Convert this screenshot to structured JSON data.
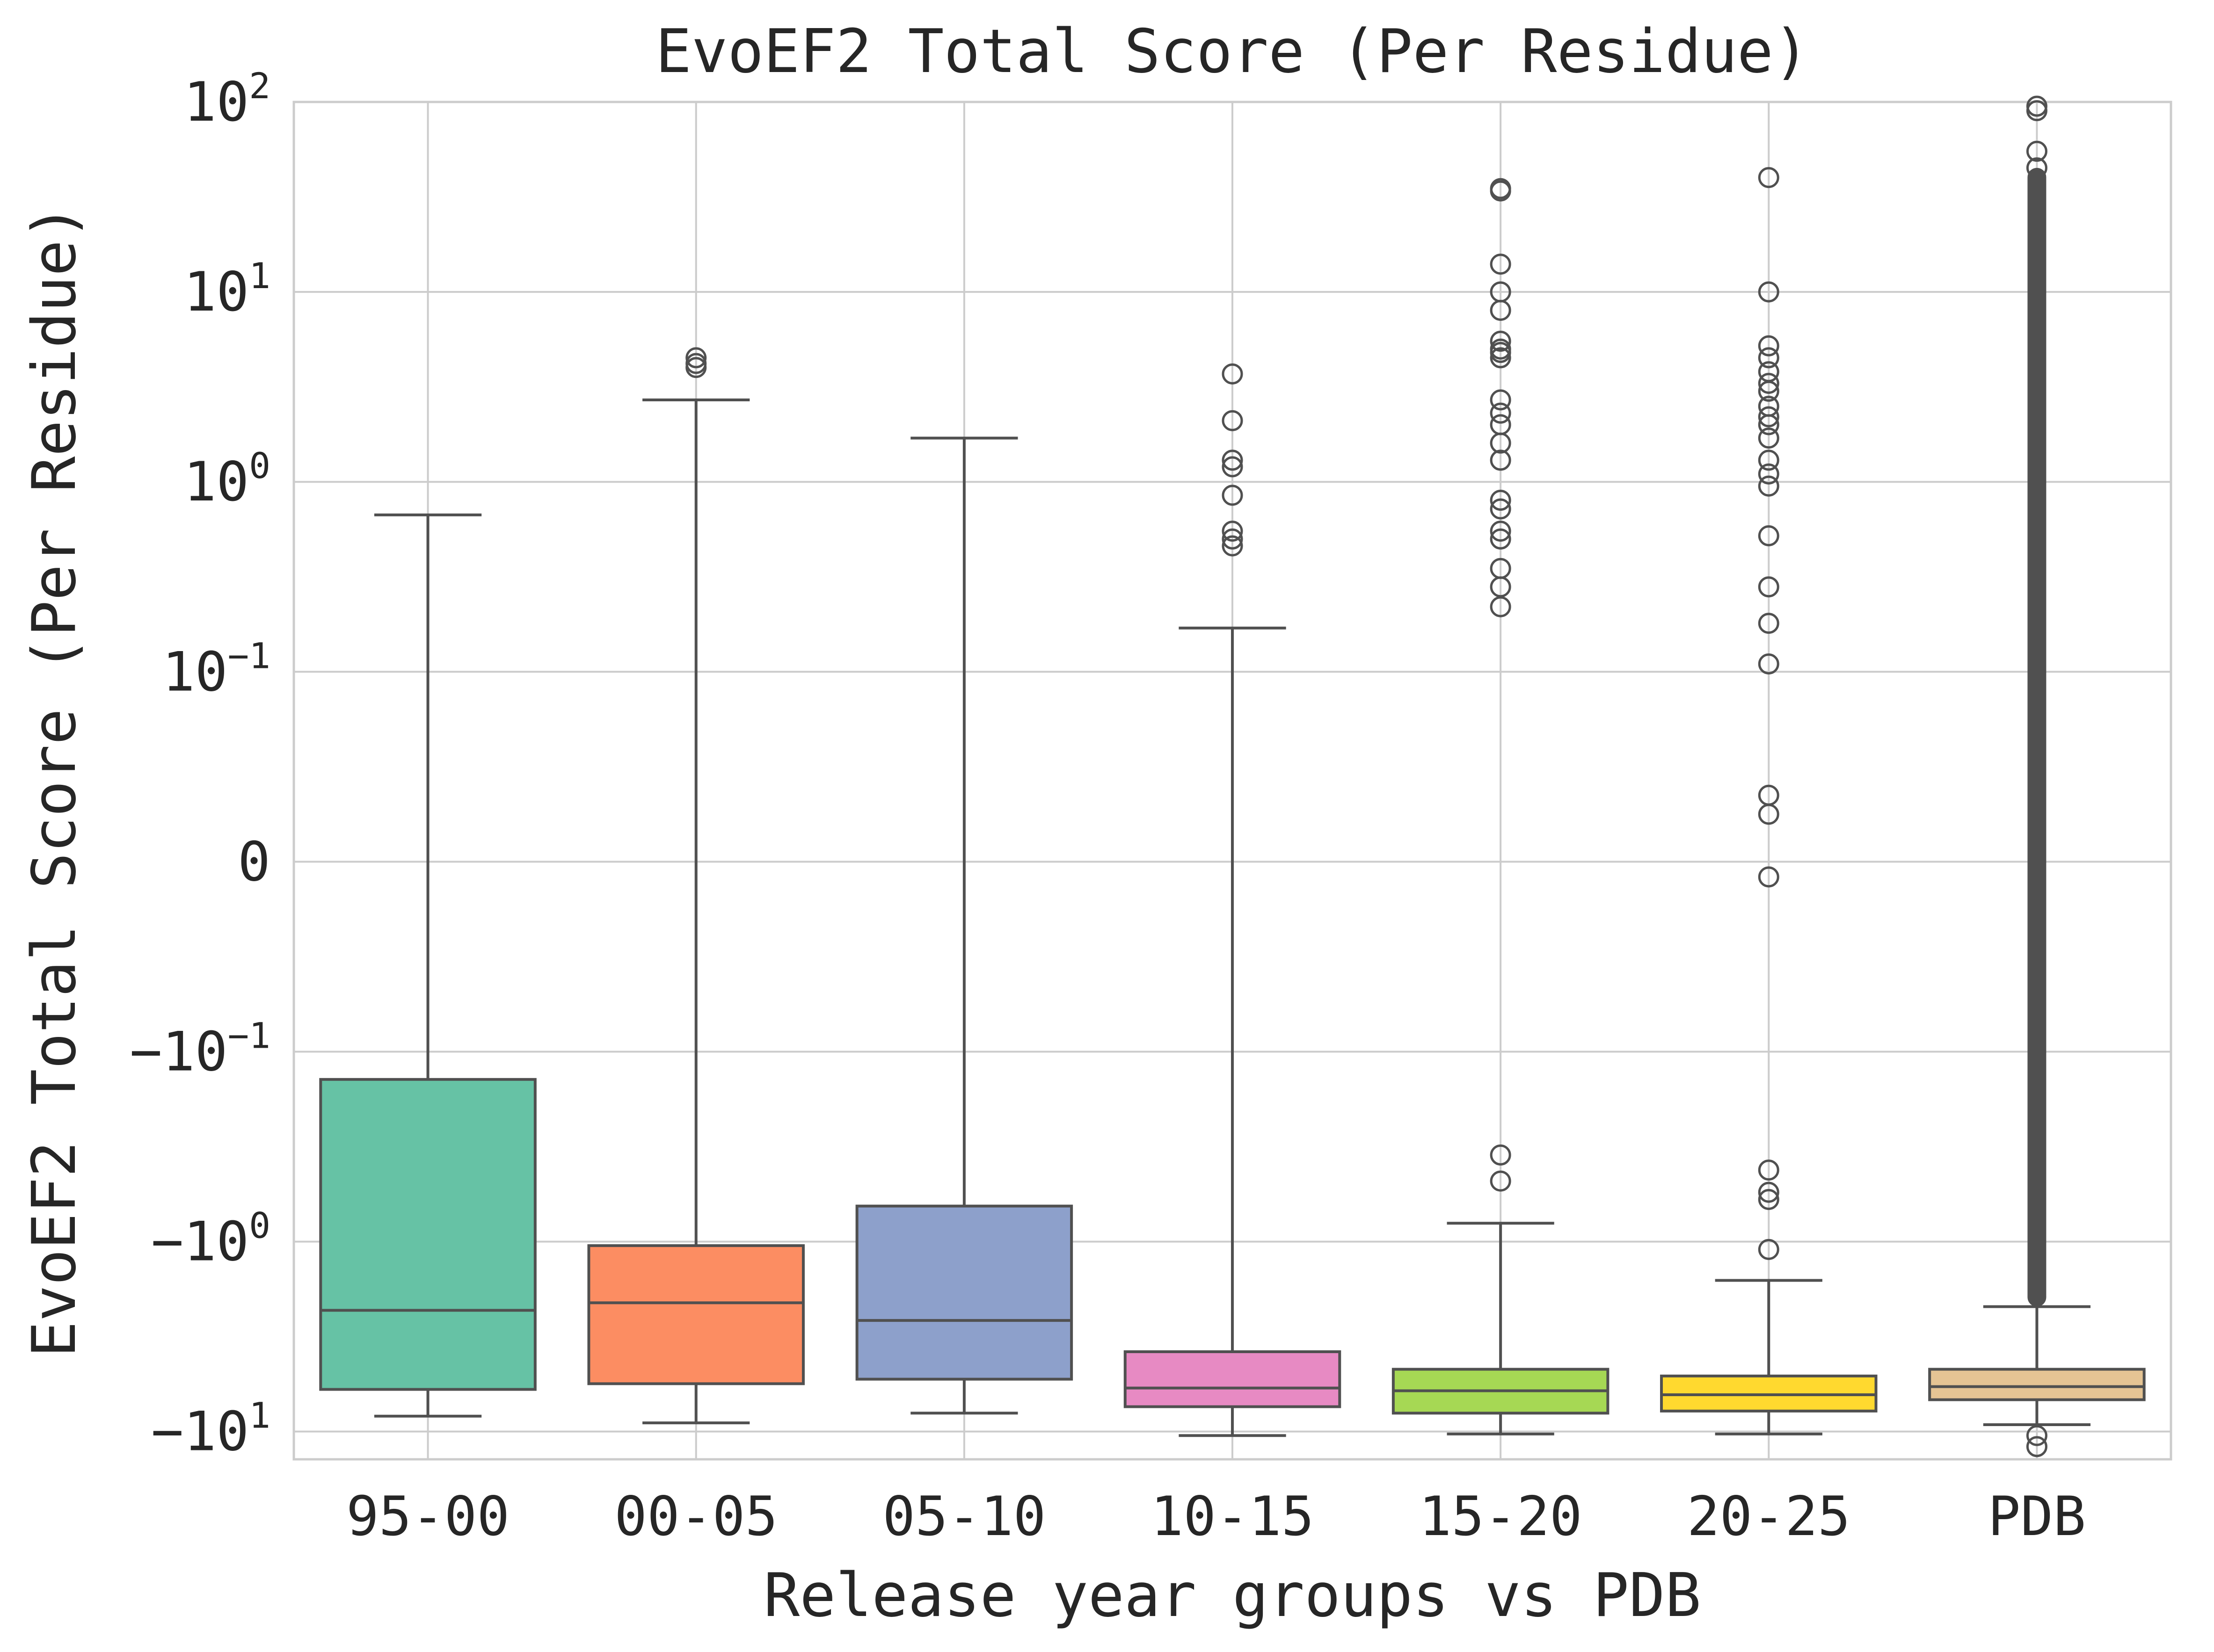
{
  "chart_data": {
    "type": "box",
    "title": "EvoEF2 Total Score (Per Residue)",
    "xlabel": "Release year groups vs PDB",
    "ylabel": "EvoEF2 Total Score (Per Residue)",
    "yscale": "symlog",
    "ylim": [
      -14,
      100
    ],
    "grid": true,
    "y_ticks": [
      {
        "value": 100,
        "base": "10",
        "exp": "2"
      },
      {
        "value": 10,
        "base": "10",
        "exp": "1"
      },
      {
        "value": 1,
        "base": "10",
        "exp": "0"
      },
      {
        "value": 0.1,
        "base": "10",
        "exp": "−1"
      },
      {
        "value": 0,
        "base": "0",
        "exp": ""
      },
      {
        "value": -0.1,
        "base": "−10",
        "exp": "−1"
      },
      {
        "value": -1,
        "base": "−10",
        "exp": "0"
      },
      {
        "value": -10,
        "base": "−10",
        "exp": "1"
      }
    ],
    "categories": [
      "95-00",
      "00-05",
      "05-10",
      "10-15",
      "15-20",
      "20-25",
      "PDB"
    ],
    "boxes": [
      {
        "category": "95-00",
        "color": "#66c2a5",
        "whisker_low": -8.3,
        "q1": -6.0,
        "median": -2.3,
        "q3": -0.14,
        "whisker_high": 0.67,
        "outliers": []
      },
      {
        "category": "00-05",
        "color": "#fc8d62",
        "whisker_low": -9.0,
        "q1": -5.6,
        "median": -2.1,
        "q3": -1.05,
        "whisker_high": 2.7,
        "outliers": [
          4.0,
          4.2,
          4.5
        ]
      },
      {
        "category": "05-10",
        "color": "#8da0cb",
        "whisker_low": -8.0,
        "q1": -5.3,
        "median": -2.6,
        "q3": -0.65,
        "whisker_high": 1.7,
        "outliers": []
      },
      {
        "category": "10-15",
        "color": "#e78ac3",
        "whisker_low": -10.5,
        "q1": -7.4,
        "median": -5.9,
        "q3": -3.8,
        "whisker_high": 0.17,
        "outliers": [
          3.7,
          2.1,
          1.3,
          1.2,
          0.85,
          0.55,
          0.5,
          0.46
        ]
      },
      {
        "category": "15-20",
        "color": "#a6d854",
        "whisker_low": -10.3,
        "q1": -8.0,
        "median": -6.1,
        "q3": -4.7,
        "whisker_high": -0.8,
        "outliers": [
          35,
          34,
          14,
          10,
          8,
          5.5,
          5,
          4.8,
          4.5,
          2.7,
          2.3,
          2.0,
          1.6,
          1.3,
          0.8,
          0.72,
          0.55,
          0.5,
          0.35,
          0.28,
          0.22,
          -0.35,
          -0.48
        ]
      },
      {
        "category": "20-25",
        "color": "#ffd92f",
        "whisker_low": -10.3,
        "q1": -7.8,
        "median": -6.4,
        "q3": -5.1,
        "whisker_high": -1.6,
        "outliers": [
          40,
          10,
          5.2,
          4.5,
          3.8,
          3.3,
          3.0,
          2.5,
          2.2,
          2.0,
          1.7,
          1.3,
          1.1,
          0.95,
          0.52,
          0.28,
          0.18,
          0.11,
          0.035,
          0.025,
          -0.008,
          -0.42,
          -0.55,
          -0.6,
          -1.1
        ]
      },
      {
        "category": "PDB",
        "color": "#e5c494",
        "whisker_low": -9.2,
        "q1": -6.8,
        "median": -5.8,
        "q3": -4.7,
        "whisker_high": -2.2,
        "outliers_dense_range": [
          -2.2,
          45
        ],
        "outliers": [
          95,
          90,
          55,
          45,
          -10.5,
          -12
        ]
      }
    ]
  }
}
